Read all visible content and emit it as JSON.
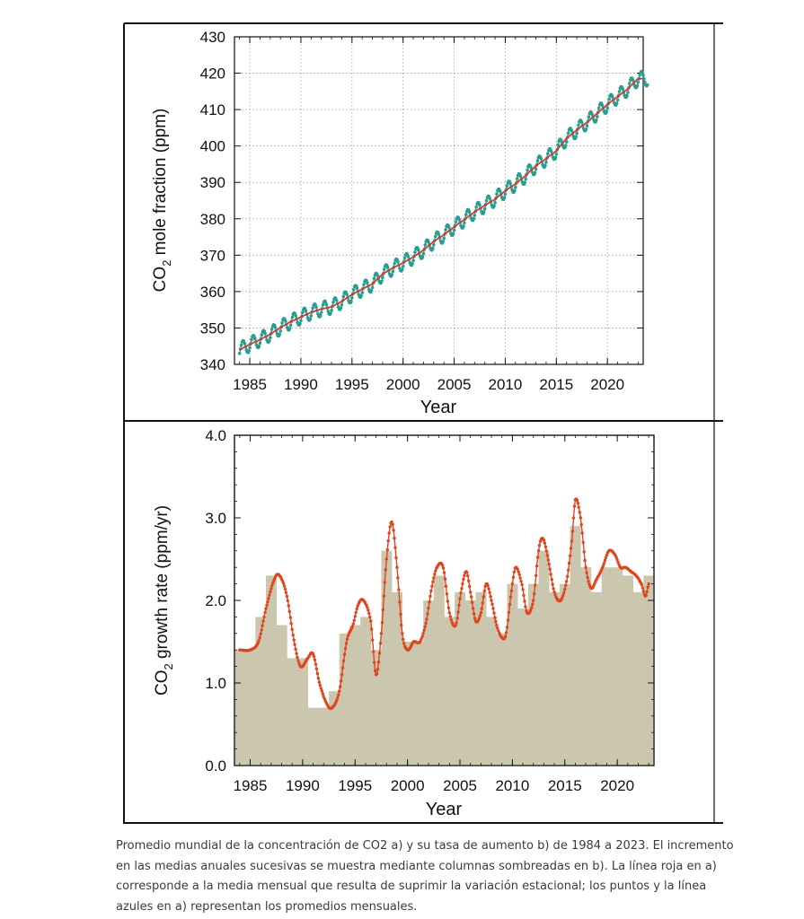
{
  "chart_data": [
    {
      "panel": "a",
      "type": "line",
      "xlabel": "Year",
      "ylabel": "CO",
      "ylabel_sub": "2",
      "ylabel_rest": " mole fraction (ppm)",
      "xlim": [
        1983.5,
        2023.5
      ],
      "ylim": [
        340,
        430
      ],
      "yticks": [
        340,
        350,
        360,
        370,
        380,
        390,
        400,
        410,
        420,
        430
      ],
      "xticks": [
        1985,
        1990,
        1995,
        2000,
        2005,
        2010,
        2015,
        2020
      ],
      "grid": true,
      "series": [
        {
          "kind": "deseasonalized",
          "color": "#d23a2a",
          "x": [
            1984,
            1985,
            1986,
            1987,
            1988,
            1989,
            1990,
            1991,
            1992,
            1993,
            1994,
            1995,
            1996,
            1997,
            1998,
            1999,
            2000,
            2001,
            2002,
            2003,
            2004,
            2005,
            2006,
            2007,
            2008,
            2009,
            2010,
            2011,
            2012,
            2013,
            2014,
            2015,
            2016,
            2017,
            2018,
            2019,
            2020,
            2021,
            2022,
            2023
          ],
          "y": [
            344.0,
            345.5,
            346.8,
            348.3,
            350.1,
            351.7,
            353.0,
            354.3,
            355.2,
            355.8,
            357.3,
            359.2,
            360.7,
            362.1,
            364.8,
            366.5,
            367.9,
            369.5,
            371.4,
            373.8,
            375.6,
            377.8,
            379.8,
            381.9,
            383.7,
            385.4,
            387.7,
            389.6,
            391.9,
            394.6,
            396.5,
            398.7,
            402.1,
            404.4,
            406.5,
            409.0,
            411.4,
            413.6,
            415.7,
            418.5
          ]
        },
        {
          "kind": "monthly",
          "color": "#2a9d93",
          "seasonal_amplitude": 2.0
        }
      ]
    },
    {
      "panel": "b",
      "type": "bar",
      "xlabel": "Year",
      "ylabel": "CO",
      "ylabel_sub": "2",
      "ylabel_rest": " growth rate (ppm/yr)",
      "xlim": [
        1983.5,
        2023.5
      ],
      "ylim": [
        0,
        4
      ],
      "yticks": [
        "0.0",
        "1.0",
        "2.0",
        "3.0",
        "4.0"
      ],
      "xticks": [
        1985,
        1990,
        1995,
        2000,
        2005,
        2010,
        2015,
        2020
      ],
      "bar_color": "#cbc6ae",
      "line_color": "#e0461e",
      "categories": [
        1984,
        1985,
        1986,
        1987,
        1988,
        1989,
        1990,
        1991,
        1992,
        1993,
        1994,
        1995,
        1996,
        1997,
        1998,
        1999,
        2000,
        2001,
        2002,
        2003,
        2004,
        2005,
        2006,
        2007,
        2008,
        2009,
        2010,
        2011,
        2012,
        2013,
        2014,
        2015,
        2016,
        2017,
        2018,
        2019,
        2020,
        2021,
        2022,
        2023
      ],
      "values": [
        1.4,
        1.4,
        1.8,
        2.3,
        1.7,
        1.3,
        1.3,
        0.7,
        0.7,
        0.9,
        1.6,
        1.7,
        1.8,
        1.4,
        2.6,
        2.1,
        1.5,
        1.5,
        2.0,
        2.3,
        1.8,
        2.1,
        2.0,
        2.1,
        1.8,
        1.6,
        2.2,
        1.9,
        2.2,
        2.6,
        2.1,
        2.2,
        2.9,
        2.4,
        2.1,
        2.4,
        2.4,
        2.3,
        2.1,
        2.3
      ],
      "smoothed_growth": {
        "x": [
          1984.0,
          1985.0,
          1985.8,
          1986.5,
          1987.3,
          1987.8,
          1988.5,
          1989.2,
          1989.8,
          1990.5,
          1991.0,
          1991.6,
          1992.3,
          1992.8,
          1993.5,
          1994.2,
          1994.8,
          1995.3,
          1995.8,
          1996.5,
          1997.0,
          1997.5,
          1998.0,
          1998.5,
          1999.0,
          1999.5,
          2000.0,
          2000.6,
          2001.2,
          2001.8,
          2002.3,
          2002.8,
          2003.4,
          2004.0,
          2004.6,
          2005.1,
          2005.6,
          2006.0,
          2006.5,
          2007.0,
          2007.5,
          2008.0,
          2008.5,
          2009.0,
          2009.4,
          2009.9,
          2010.3,
          2010.9,
          2011.4,
          2012.0,
          2012.5,
          2012.9,
          2013.4,
          2014.0,
          2014.6,
          2015.2,
          2015.7,
          2016.0,
          2016.5,
          2017.0,
          2017.5,
          2018.0,
          2018.6,
          2019.2,
          2019.8,
          2020.3,
          2020.8,
          2021.3,
          2021.8,
          2022.3,
          2022.7,
          2023.0
        ],
        "y": [
          1.4,
          1.4,
          1.5,
          1.9,
          2.25,
          2.3,
          2.05,
          1.5,
          1.2,
          1.3,
          1.35,
          1.0,
          0.75,
          0.7,
          0.9,
          1.5,
          1.7,
          1.95,
          2.0,
          1.75,
          1.1,
          1.6,
          2.5,
          2.95,
          2.4,
          1.6,
          1.4,
          1.5,
          1.5,
          1.75,
          2.15,
          2.4,
          2.4,
          1.85,
          1.7,
          2.1,
          2.35,
          2.1,
          1.75,
          1.85,
          2.2,
          2.0,
          1.7,
          1.55,
          1.6,
          2.1,
          2.4,
          2.2,
          1.85,
          2.0,
          2.6,
          2.75,
          2.5,
          2.1,
          2.0,
          2.25,
          2.75,
          3.22,
          3.0,
          2.4,
          2.15,
          2.25,
          2.4,
          2.6,
          2.55,
          2.4,
          2.4,
          2.35,
          2.3,
          2.2,
          2.05,
          2.2
        ]
      }
    }
  ],
  "caption": "Promedio mundial de la concentración de CO2 a) y su tasa de aumento b) de 1984 a 2023. El incremento en las medias anuales sucesivas se muestra mediante columnas sombreadas en b). La línea roja en a) corresponde a la media mensual que resulta de suprimir la variación estacional; los puntos y la línea azules en a) representan los promedios mensuales."
}
